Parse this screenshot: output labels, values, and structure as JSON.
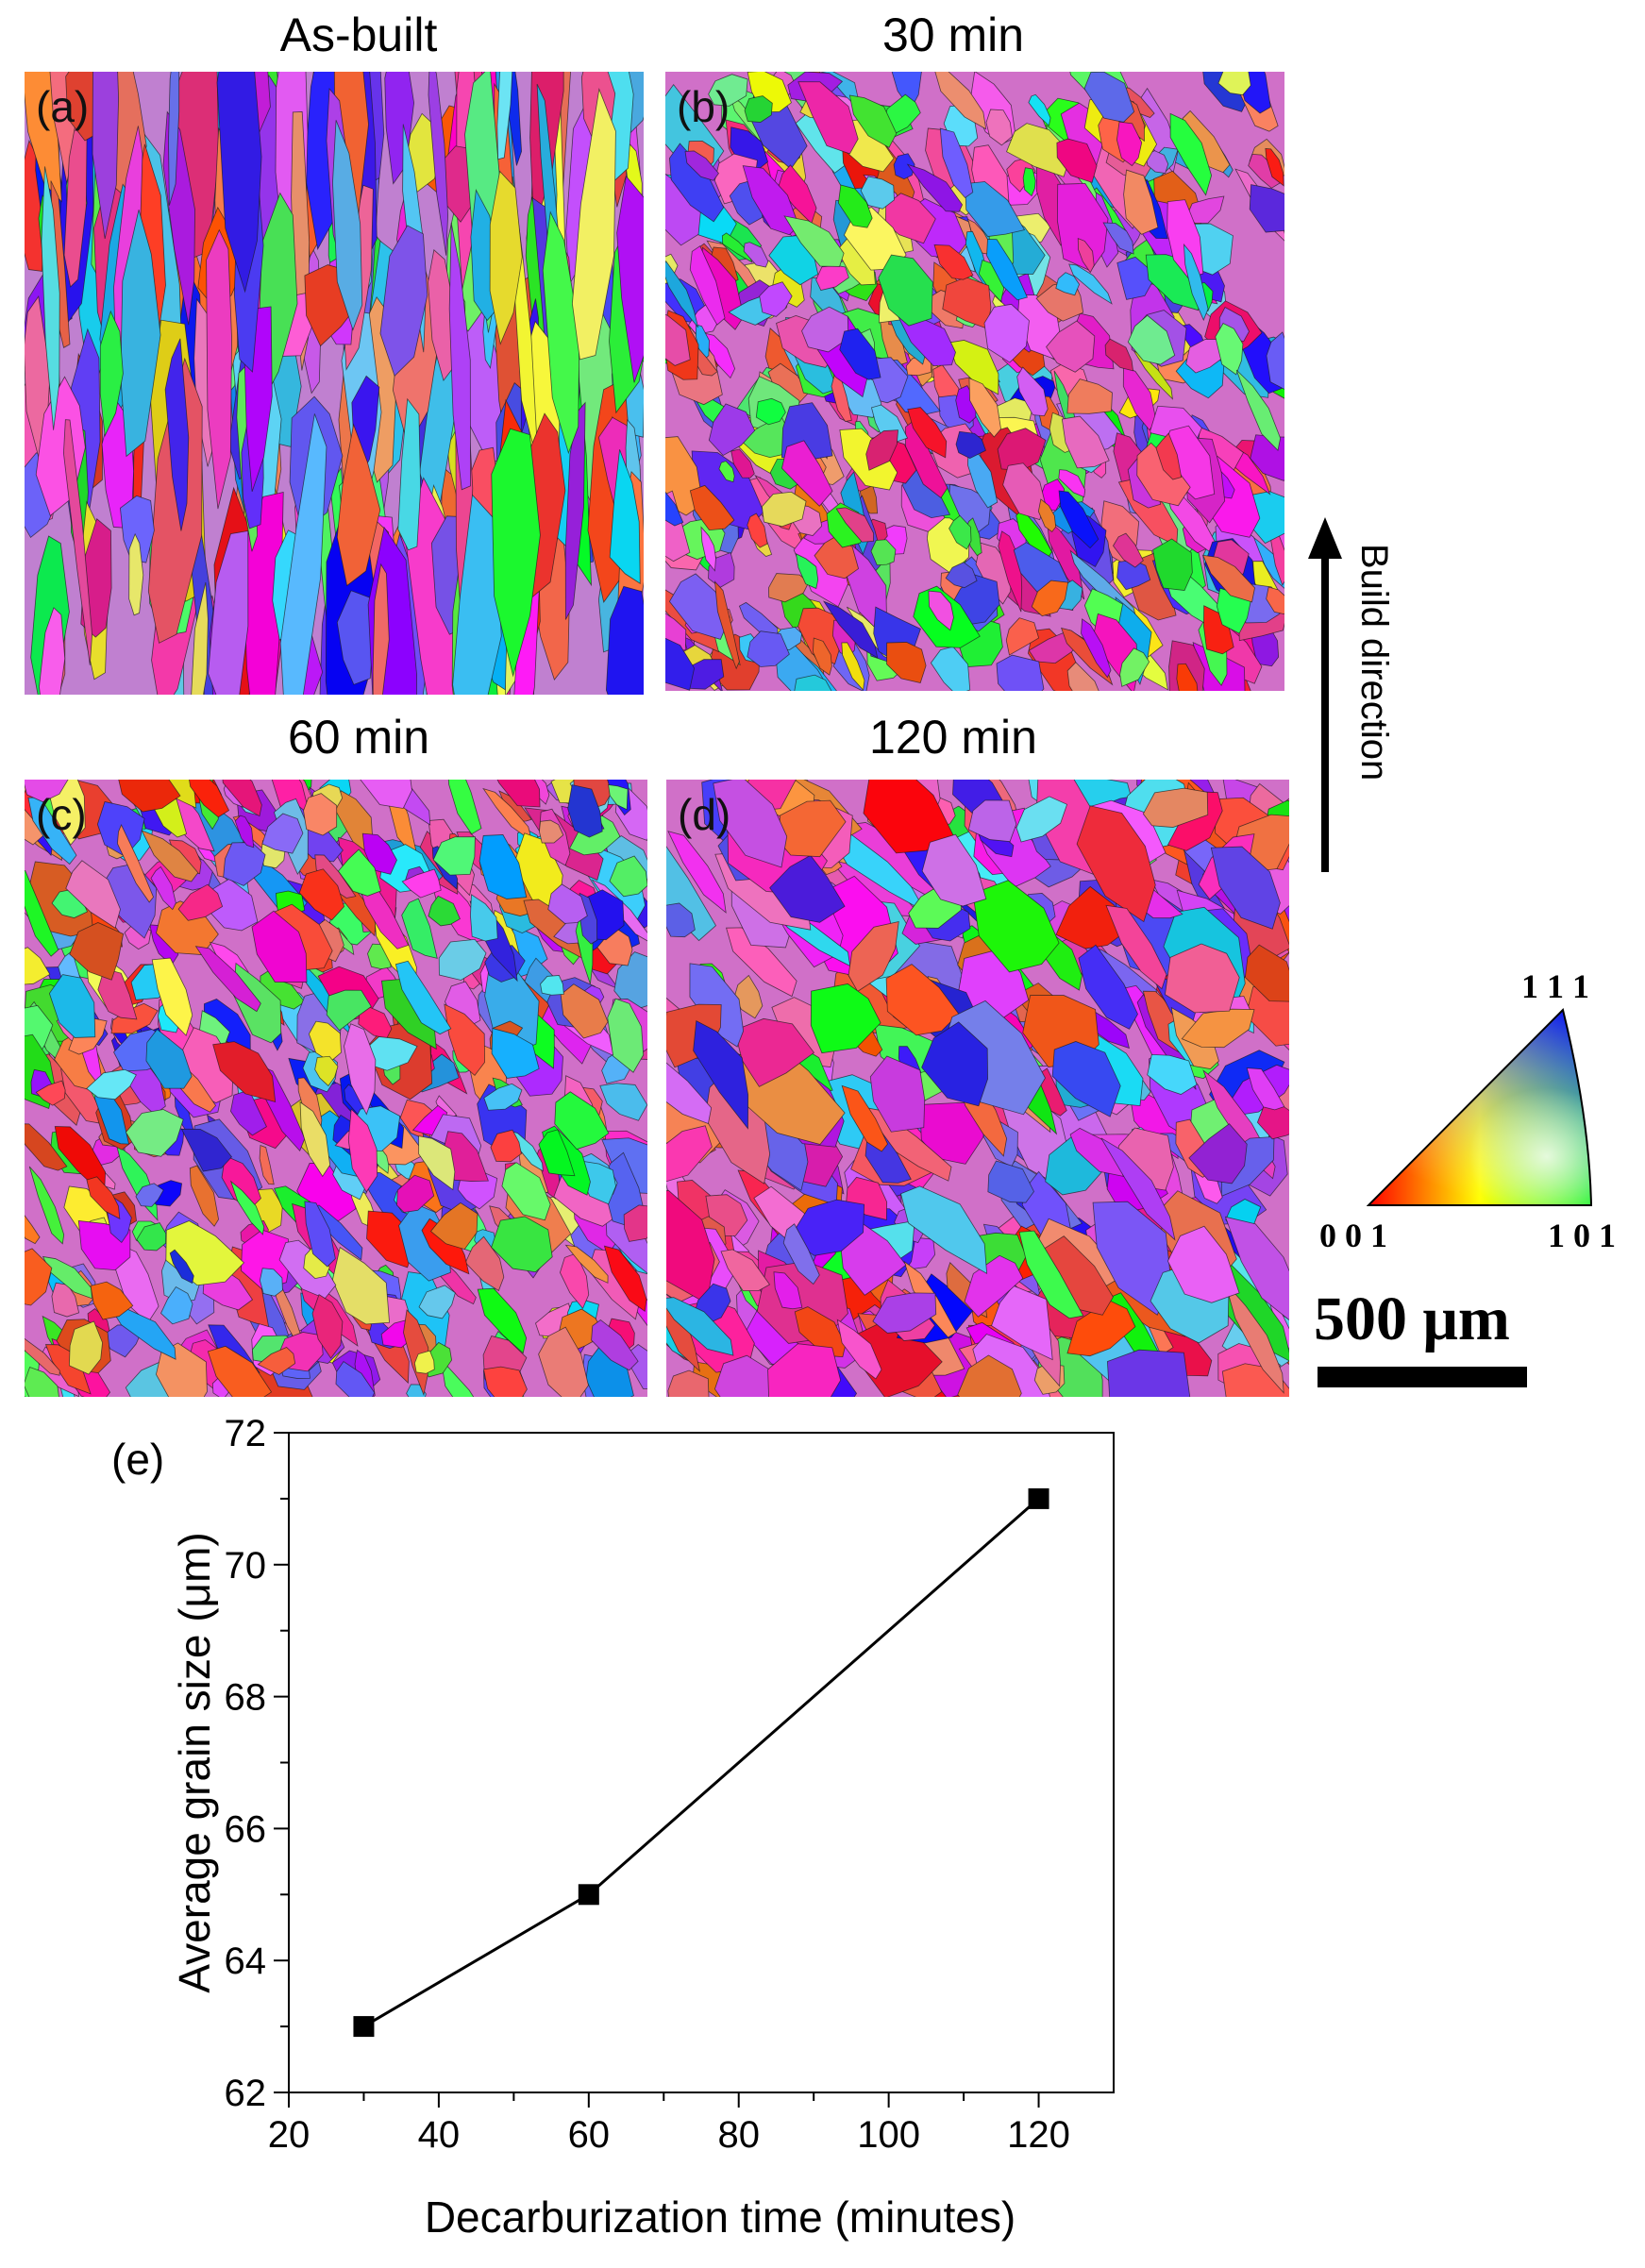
{
  "maps": [
    {
      "id": "a",
      "label": "(a)",
      "title": "As-built"
    },
    {
      "id": "b",
      "label": "(b)",
      "title": "30 min"
    },
    {
      "id": "c",
      "label": "(c)",
      "title": "60 min"
    },
    {
      "id": "d",
      "label": "(d)",
      "title": "120 min"
    }
  ],
  "build_direction": {
    "label": "Build direction"
  },
  "ipf_legend": {
    "top": "1 1 1",
    "left": "0 0 1",
    "right": "1 0 1",
    "colors": [
      "#ff0000",
      "#00ff00",
      "#0000ff"
    ]
  },
  "scale_bar": {
    "label": "500 μm"
  },
  "chart_data": {
    "type": "line",
    "panel_label": "(e)",
    "x": [
      30,
      60,
      120
    ],
    "y": [
      63,
      65,
      71
    ],
    "xlabel": "Decarburization time (minutes)",
    "ylabel": "Average grain size (μm)",
    "xlim": [
      20,
      130
    ],
    "ylim": [
      62,
      72
    ],
    "xticks": [
      20,
      40,
      60,
      80,
      100,
      120
    ],
    "yticks": [
      62,
      64,
      66,
      68,
      70,
      72
    ],
    "marker": "square",
    "color": "#000000",
    "grid": false
  }
}
